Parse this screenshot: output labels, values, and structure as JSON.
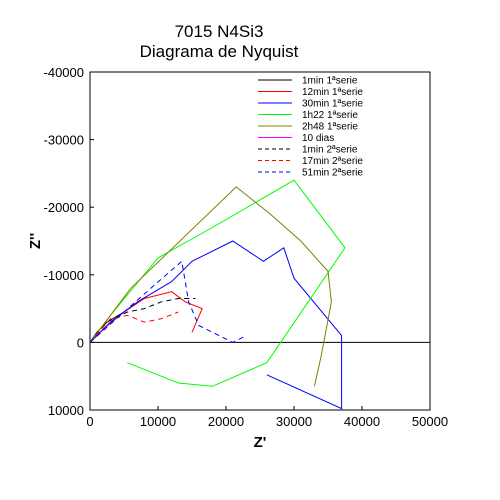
{
  "chart_data": {
    "type": "line",
    "title": "7015 N4Si3",
    "subtitle": "Diagrama de Nyquist",
    "xlabel": "Z'",
    "ylabel": "Z''",
    "xlim": [
      0,
      50000
    ],
    "ylim": [
      10000,
      -40000
    ],
    "y_axis_inverted": true,
    "grid": false,
    "legend_position": "top-right",
    "zero_line": true,
    "xticks": [
      "0",
      "10000",
      "20000",
      "30000",
      "40000",
      "50000"
    ],
    "yticks": [
      "-40000",
      "-30000",
      "-20000",
      "-10000",
      "0",
      "10000"
    ],
    "series": [
      {
        "name": "1min 1ªserie",
        "color": "#000000",
        "dash": "solid",
        "x": [
          0,
          1000,
          2500,
          5000
        ],
        "y": [
          0,
          -1500,
          -3000,
          -4500
        ]
      },
      {
        "name": "12min 1ªserie",
        "color": "#ff0000",
        "dash": "solid",
        "x": [
          0,
          2000,
          5000,
          8000,
          12000,
          14000,
          16500,
          15000
        ],
        "y": [
          0,
          -2000,
          -4500,
          -6500,
          -7500,
          -6000,
          -5000,
          -1500
        ]
      },
      {
        "name": "30min 1ªserie",
        "color": "#0000ff",
        "dash": "solid",
        "x": [
          0,
          3000,
          7000,
          12000,
          15000,
          21000,
          25500,
          28500,
          30000,
          37000,
          37000,
          26000
        ],
        "y": [
          0,
          -3000,
          -6000,
          -9000,
          -12000,
          -15000,
          -12000,
          -14000,
          -9500,
          -1000,
          9800,
          4800
        ]
      },
      {
        "name": "1h22 1ªserie",
        "color": "#00ff00",
        "dash": "solid",
        "x": [
          0,
          3000,
          10000,
          18000,
          30000,
          37500,
          26000,
          18000,
          13000,
          5500
        ],
        "y": [
          0,
          -4000,
          -12500,
          -17000,
          -24000,
          -14000,
          3000,
          6500,
          6000,
          3000
        ]
      },
      {
        "name": "2h48 1ªserie",
        "color": "#808000",
        "dash": "solid",
        "x": [
          0,
          6000,
          21500,
          26500,
          31000,
          35000,
          35500,
          34000,
          33000
        ],
        "y": [
          0,
          -8000,
          -23000,
          -19000,
          -15000,
          -10500,
          -6000,
          2000,
          6500
        ]
      },
      {
        "name": "10 dias",
        "color": "#ff00ff",
        "dash": "solid",
        "x": [],
        "y": []
      },
      {
        "name": "1min 2ªserie",
        "color": "#000000",
        "dash": "dashed",
        "x": [
          0,
          2500,
          5500,
          8000,
          10500,
          13000,
          15500
        ],
        "y": [
          0,
          -3000,
          -4500,
          -5000,
          -6000,
          -6500,
          -6500
        ]
      },
      {
        "name": "17min 2ªserie",
        "color": "#ff0000",
        "dash": "dashed",
        "x": [
          0,
          3000,
          5500,
          8000,
          10500,
          13000
        ],
        "y": [
          0,
          -3500,
          -4000,
          -3000,
          -3500,
          -4500
        ]
      },
      {
        "name": "51min 2ªserie",
        "color": "#0000ff",
        "dash": "dashed",
        "x": [
          0,
          5000,
          9500,
          13500,
          14500,
          16000,
          21000,
          23000
        ],
        "y": [
          0,
          -4500,
          -8500,
          -12000,
          -6000,
          -2500,
          0,
          -1000
        ]
      }
    ]
  }
}
